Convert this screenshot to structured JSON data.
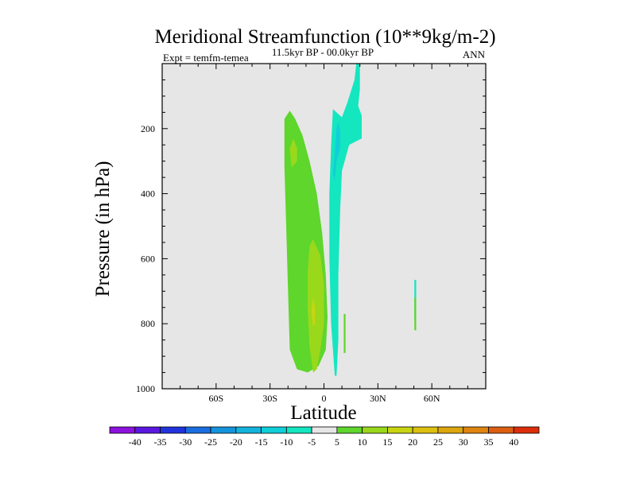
{
  "chart_data": {
    "type": "heatmap",
    "title": "Meridional Streamfunction (10**9kg/m-2)",
    "subtitle": "11.5kyr BP - 00.0kyr BP",
    "left_label": "Expt = temfm-temea",
    "right_label": "ANN",
    "xlabel": "Latitude",
    "ylabel": "Pressure (in hPa)",
    "xlim": [
      -90,
      90
    ],
    "ylim": [
      1000,
      0
    ],
    "x_ticks": [
      {
        "value": -60,
        "label": "60S"
      },
      {
        "value": -30,
        "label": "30S"
      },
      {
        "value": 0,
        "label": "0"
      },
      {
        "value": 30,
        "label": "30N"
      },
      {
        "value": 60,
        "label": "60N"
      }
    ],
    "y_ticks": [
      {
        "value": 200,
        "label": "200"
      },
      {
        "value": 400,
        "label": "400"
      },
      {
        "value": 600,
        "label": "600"
      },
      {
        "value": 800,
        "label": "800"
      },
      {
        "value": 1000,
        "label": "1000"
      }
    ],
    "background_color": "#e6e6e6",
    "colorbar": {
      "levels": [
        "-40",
        "-35",
        "-30",
        "-25",
        "-20",
        "-15",
        "-10",
        "-5",
        "5",
        "10",
        "15",
        "20",
        "25",
        "30",
        "35",
        "40"
      ],
      "colors": [
        "#8c12dd",
        "#5a17e0",
        "#2233dd",
        "#1a6de0",
        "#1494dc",
        "#12b4dd",
        "#10cfd8",
        "#14e6c0",
        "#e6e6e6",
        "#5ed62c",
        "#9ad81c",
        "#c8d412",
        "#dcc010",
        "#dca60e",
        "#de8410",
        "#dc5e10",
        "#dd2e0c"
      ]
    },
    "regions": [
      {
        "name": "sh-positive-cell",
        "value": 7,
        "polygon": [
          [
            -15,
            940
          ],
          [
            -19,
            880
          ],
          [
            -20,
            700
          ],
          [
            -21,
            500
          ],
          [
            -22,
            320
          ],
          [
            -22,
            170
          ],
          [
            -19,
            145
          ],
          [
            -16,
            170
          ],
          [
            -12,
            220
          ],
          [
            -8,
            300
          ],
          [
            -4,
            400
          ],
          [
            -1,
            520
          ],
          [
            1,
            650
          ],
          [
            2,
            780
          ],
          [
            1,
            880
          ],
          [
            -3,
            930
          ],
          [
            -9,
            950
          ]
        ]
      },
      {
        "name": "sh-core-1",
        "value": 12,
        "polygon": [
          [
            -18,
            320
          ],
          [
            -19,
            260
          ],
          [
            -17,
            230
          ],
          [
            -15,
            260
          ],
          [
            -15,
            300
          ]
        ]
      },
      {
        "name": "sh-core-2",
        "value": 12,
        "polygon": [
          [
            -6,
            950
          ],
          [
            -8,
            870
          ],
          [
            -9,
            760
          ],
          [
            -9,
            640
          ],
          [
            -8,
            560
          ],
          [
            -6,
            540
          ],
          [
            -2,
            590
          ],
          [
            0,
            680
          ],
          [
            0,
            800
          ],
          [
            -2,
            880
          ],
          [
            -4,
            940
          ]
        ]
      },
      {
        "name": "sh-core-3",
        "value": 16,
        "polygon": [
          [
            -6,
            810
          ],
          [
            -7,
            760
          ],
          [
            -6,
            720
          ],
          [
            -5,
            750
          ],
          [
            -5,
            800
          ]
        ]
      },
      {
        "name": "nh-negative-cell",
        "value": -7,
        "polygon": [
          [
            6,
            960
          ],
          [
            4,
            800
          ],
          [
            3,
            600
          ],
          [
            3,
            400
          ],
          [
            4,
            250
          ],
          [
            5,
            140
          ],
          [
            10,
            165
          ],
          [
            13,
            120
          ],
          [
            17,
            50
          ],
          [
            18,
            -10
          ],
          [
            20,
            -10
          ],
          [
            20,
            80
          ],
          [
            19,
            130
          ],
          [
            21,
            160
          ],
          [
            21,
            230
          ],
          [
            14,
            250
          ],
          [
            10,
            330
          ],
          [
            9,
            450
          ],
          [
            8,
            650
          ],
          [
            8,
            850
          ],
          [
            7,
            960
          ]
        ]
      },
      {
        "name": "nh-negative-core",
        "value": -12,
        "polygon": [
          [
            5,
            340
          ],
          [
            6,
            280
          ],
          [
            7,
            200
          ],
          [
            8,
            180
          ],
          [
            9,
            210
          ],
          [
            9,
            260
          ],
          [
            7,
            300
          ],
          [
            6,
            360
          ]
        ]
      },
      {
        "name": "nh-streak",
        "value": 7,
        "polygon": [
          [
            11,
            770
          ],
          [
            12,
            770
          ],
          [
            12,
            890
          ],
          [
            11,
            890
          ]
        ]
      },
      {
        "name": "mid-lat-cell-1",
        "value": -7,
        "polygon": [
          [
            50.3,
            665
          ],
          [
            51.3,
            665
          ],
          [
            51.3,
            790
          ],
          [
            50.3,
            790
          ]
        ]
      },
      {
        "name": "mid-lat-cell-2",
        "value": 7,
        "polygon": [
          [
            50.3,
            720
          ],
          [
            51.3,
            720
          ],
          [
            51.3,
            820
          ],
          [
            50.3,
            820
          ]
        ]
      }
    ]
  }
}
